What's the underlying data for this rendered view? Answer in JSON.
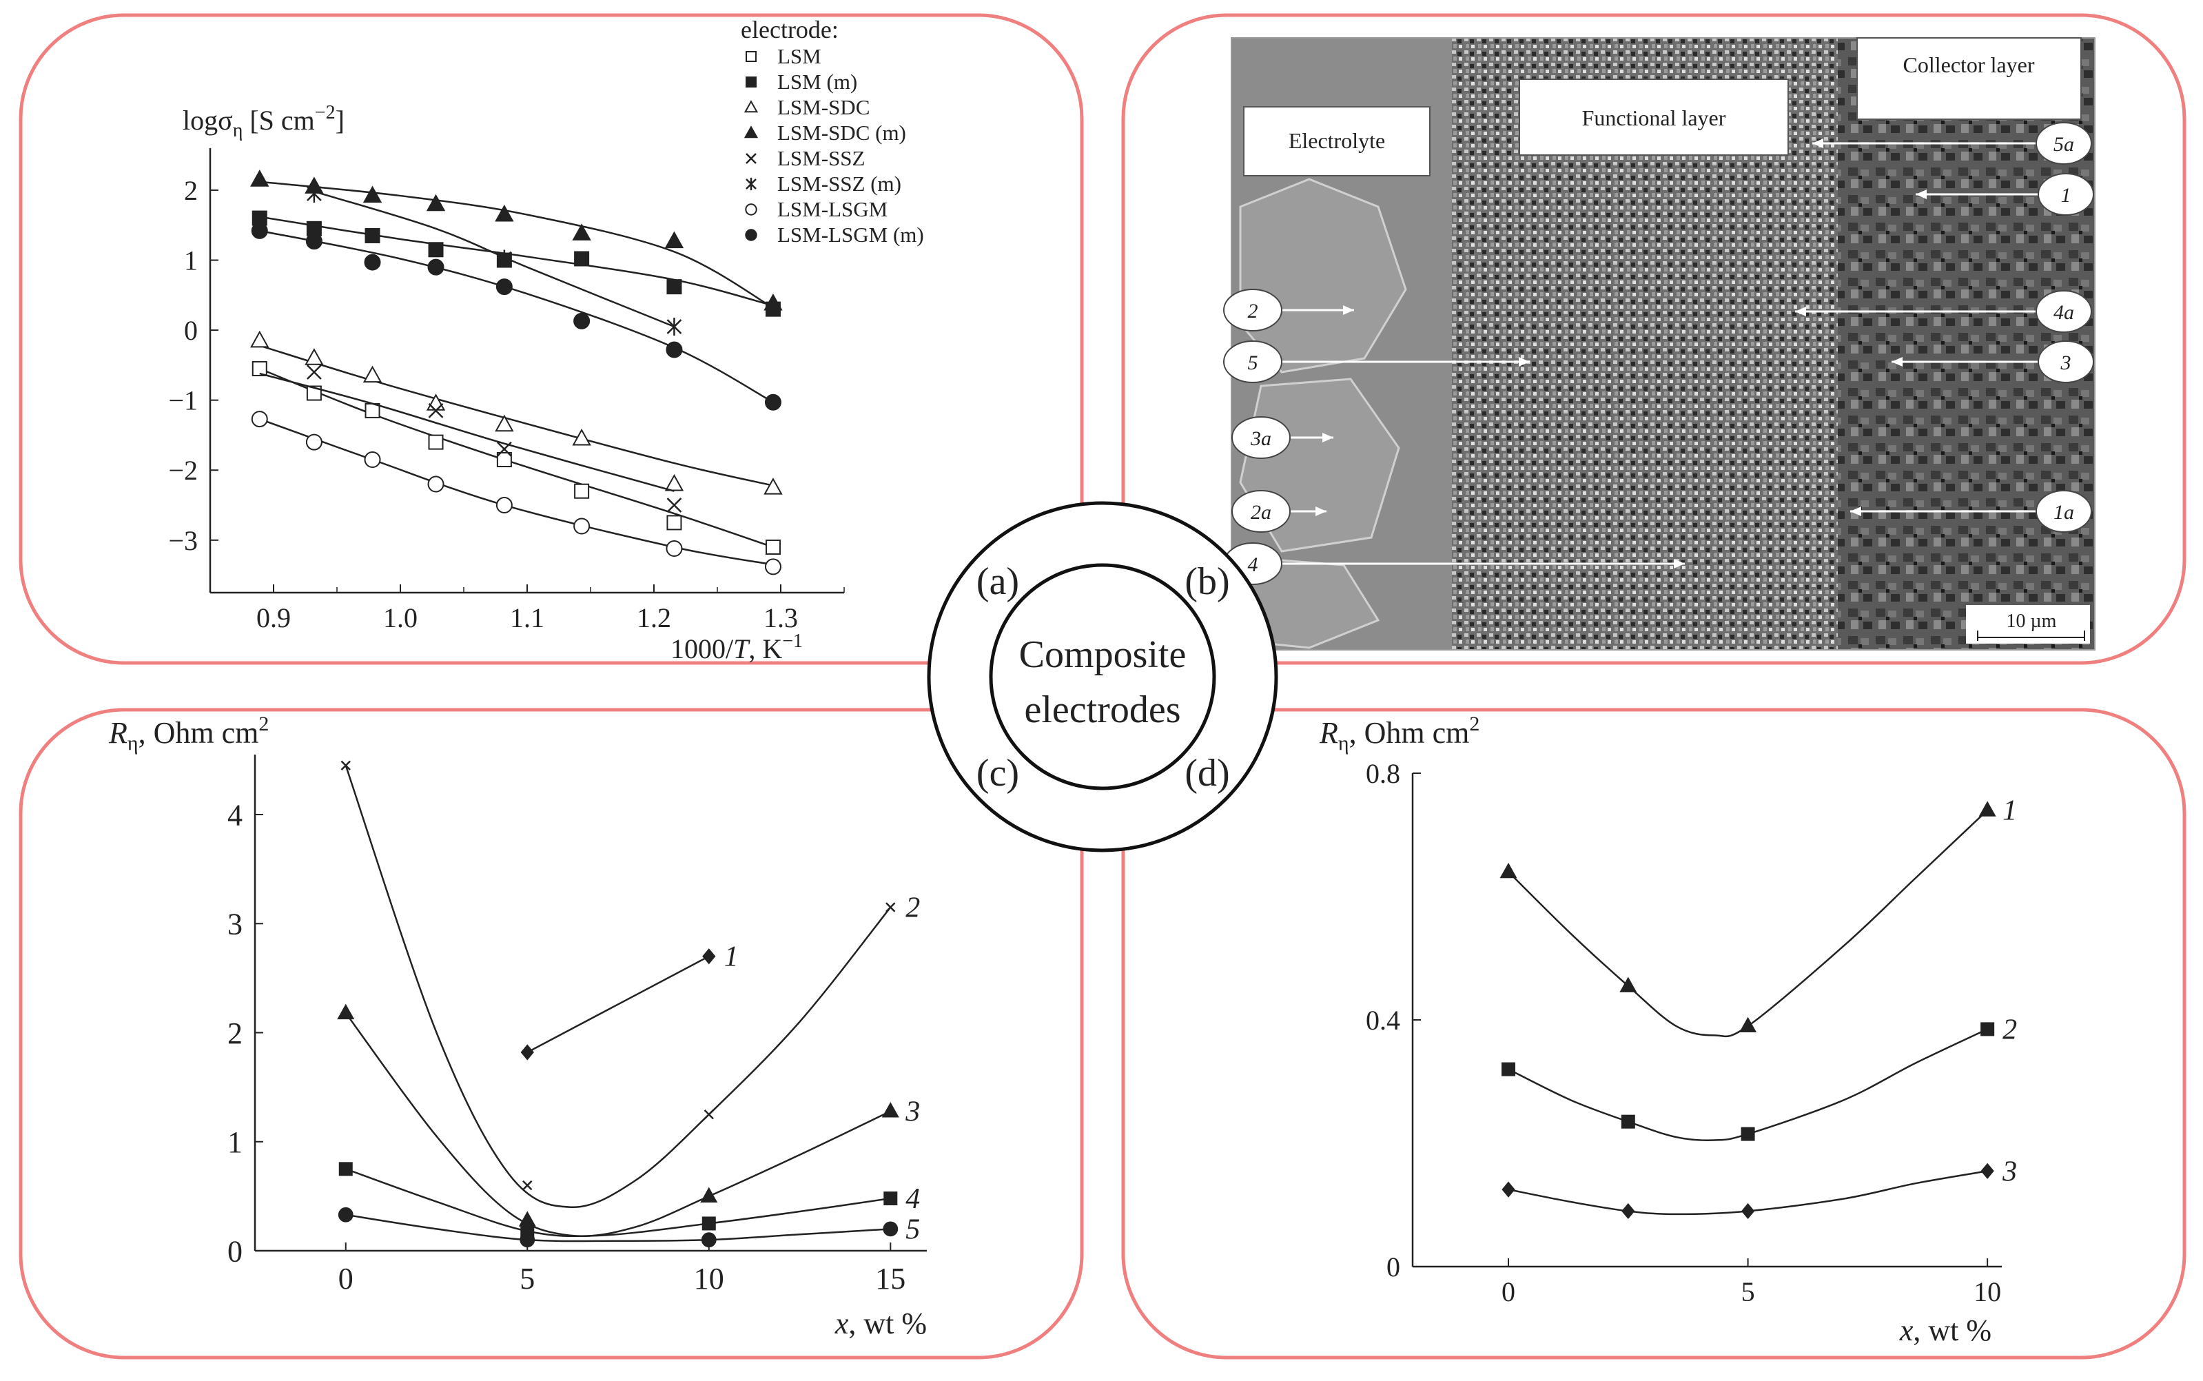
{
  "center": {
    "line1": "Composite",
    "line2": "electrodes",
    "labels": [
      "(a)",
      "(b)",
      "(c)",
      "(d)"
    ]
  },
  "colors": {
    "frame": "#f08080",
    "ink": "#222222"
  },
  "chart_data": [
    {
      "id": "a",
      "type": "scatter",
      "ylabel_main": "logσ",
      "ylabel_sub": "η",
      "ylabel_unit": "[S cm",
      "ylabel_sup": "−2",
      "ylabel_end": "]",
      "xlabel_pre": "1000/",
      "xlabel_var": "T",
      "xlabel_unit": ", K",
      "xlabel_sup": "−1",
      "legend_title": "electrode:",
      "legend_placement": "top-right",
      "xlim": [
        0.85,
        1.35
      ],
      "ylim": [
        -3.75,
        2.6
      ],
      "xticks": [
        0.9,
        1.0,
        1.1,
        1.2,
        1.3
      ],
      "xtick_labels": [
        "0.9",
        "1.0",
        "1.1",
        "1.2",
        "1.3"
      ],
      "yticks": [
        2,
        1,
        0,
        -1,
        -2,
        -3
      ],
      "ytick_labels": [
        "2",
        "1",
        "0",
        "−1",
        "−2",
        "−3"
      ],
      "series": [
        {
          "name": "LSM",
          "marker": "square-open",
          "x": [
            0.889,
            0.932,
            0.978,
            1.028,
            1.082,
            1.143,
            1.216,
            1.294
          ],
          "y": [
            -0.55,
            -0.9,
            -1.15,
            -1.6,
            -1.85,
            -2.3,
            -2.75,
            -3.1
          ],
          "fit": [
            [
              0.889,
              -0.55
            ],
            [
              0.978,
              -1.2
            ],
            [
              1.082,
              -1.85
            ],
            [
              1.216,
              -2.62
            ],
            [
              1.294,
              -3.1
            ]
          ]
        },
        {
          "name": "LSM (m)",
          "marker": "square-filled",
          "x": [
            0.889,
            0.932,
            0.978,
            1.028,
            1.082,
            1.143,
            1.216,
            1.294
          ],
          "y": [
            1.6,
            1.45,
            1.35,
            1.15,
            1.0,
            1.02,
            0.62,
            0.3
          ],
          "fit": [
            [
              0.889,
              1.62
            ],
            [
              1.0,
              1.3
            ],
            [
              1.1,
              1.05
            ],
            [
              1.216,
              0.72
            ],
            [
              1.294,
              0.35
            ]
          ]
        },
        {
          "name": "LSM-SDC",
          "marker": "triangle-open",
          "x": [
            0.889,
            0.932,
            0.978,
            1.028,
            1.082,
            1.143,
            1.216,
            1.294
          ],
          "y": [
            -0.15,
            -0.4,
            -0.65,
            -1.05,
            -1.35,
            -1.55,
            -2.2,
            -2.25
          ],
          "fit": [
            [
              0.889,
              -0.22
            ],
            [
              0.978,
              -0.72
            ],
            [
              1.082,
              -1.25
            ],
            [
              1.216,
              -1.9
            ],
            [
              1.294,
              -2.22
            ]
          ]
        },
        {
          "name": "LSM-SDC (m)",
          "marker": "triangle-filled",
          "x": [
            0.889,
            0.932,
            0.978,
            1.028,
            1.082,
            1.143,
            1.216,
            1.294
          ],
          "y": [
            2.15,
            2.05,
            1.92,
            1.8,
            1.65,
            1.38,
            1.27,
            0.38
          ],
          "fit": [
            [
              0.889,
              2.12
            ],
            [
              1.0,
              1.92
            ],
            [
              1.1,
              1.65
            ],
            [
              1.216,
              1.12
            ],
            [
              1.294,
              0.32
            ]
          ]
        },
        {
          "name": "LSM-SSZ",
          "marker": "cross",
          "x": [
            0.932,
            1.028,
            1.082,
            1.216
          ],
          "y": [
            -0.6,
            -1.15,
            -1.7,
            -2.5
          ],
          "fit": [
            [
              0.889,
              -0.62
            ],
            [
              0.978,
              -1.05
            ],
            [
              1.082,
              -1.62
            ],
            [
              1.216,
              -2.3
            ]
          ]
        },
        {
          "name": "LSM-SSZ (m)",
          "marker": "asterisk",
          "x": [
            0.932,
            1.082,
            1.216
          ],
          "y": [
            1.95,
            1.02,
            0.05
          ],
          "fit": [
            [
              0.932,
              1.98
            ],
            [
              1.028,
              1.45
            ],
            [
              1.1,
              0.9
            ],
            [
              1.216,
              0.05
            ]
          ]
        },
        {
          "name": "LSM-LSGM",
          "marker": "circle-open",
          "x": [
            0.889,
            0.932,
            0.978,
            1.028,
            1.082,
            1.143,
            1.216,
            1.294
          ],
          "y": [
            -1.27,
            -1.6,
            -1.85,
            -2.2,
            -2.5,
            -2.8,
            -3.12,
            -3.38
          ],
          "fit": [
            [
              0.889,
              -1.27
            ],
            [
              0.978,
              -1.85
            ],
            [
              1.082,
              -2.5
            ],
            [
              1.216,
              -3.1
            ],
            [
              1.294,
              -3.35
            ]
          ]
        },
        {
          "name": "LSM-LSGM (m)",
          "marker": "circle-filled",
          "x": [
            0.889,
            0.932,
            0.978,
            1.028,
            1.082,
            1.143,
            1.216,
            1.294
          ],
          "y": [
            1.42,
            1.27,
            0.97,
            0.9,
            0.62,
            0.13,
            -0.28,
            -1.03
          ],
          "fit": [
            [
              0.889,
              1.42
            ],
            [
              1.0,
              1.02
            ],
            [
              1.1,
              0.52
            ],
            [
              1.216,
              -0.25
            ],
            [
              1.294,
              -1.03
            ]
          ]
        }
      ]
    },
    {
      "id": "c",
      "type": "line",
      "ylabel_var": "R",
      "ylabel_sub": "η",
      "ylabel_unit": ", Ohm cm",
      "ylabel_sup": "2",
      "xlabel_var": "x",
      "xlabel_unit": ", wt %",
      "xlim": [
        -2.5,
        16
      ],
      "ylim": [
        0,
        4.55
      ],
      "xticks": [
        0,
        5,
        10,
        15
      ],
      "xtick_labels": [
        "0",
        "5",
        "10",
        "15"
      ],
      "yticks": [
        0,
        1,
        2,
        3,
        4
      ],
      "ytick_labels": [
        "0",
        "1",
        "2",
        "3",
        "4"
      ],
      "series": [
        {
          "label": "1",
          "marker": "diamond",
          "x": [
            5,
            10
          ],
          "y": [
            1.82,
            2.7
          ],
          "curve": [
            [
              5,
              1.82
            ],
            [
              10,
              2.7
            ]
          ]
        },
        {
          "label": "2",
          "marker": "small-cross",
          "x": [
            0,
            5,
            10,
            15
          ],
          "y": [
            4.45,
            0.6,
            1.25,
            3.15
          ],
          "curve": [
            [
              0,
              4.45
            ],
            [
              2.5,
              2.0
            ],
            [
              4.5,
              0.7
            ],
            [
              6.2,
              0.4
            ],
            [
              8,
              0.65
            ],
            [
              10,
              1.25
            ],
            [
              12.5,
              2.1
            ],
            [
              15,
              3.15
            ]
          ]
        },
        {
          "label": "3",
          "marker": "triangle",
          "x": [
            0,
            5,
            10,
            15
          ],
          "y": [
            2.18,
            0.28,
            0.5,
            1.28
          ],
          "curve": [
            [
              0,
              2.18
            ],
            [
              2.5,
              1.05
            ],
            [
              4.5,
              0.35
            ],
            [
              6.2,
              0.14
            ],
            [
              8,
              0.22
            ],
            [
              10,
              0.5
            ],
            [
              12.5,
              0.88
            ],
            [
              15,
              1.28
            ]
          ]
        },
        {
          "label": "4",
          "marker": "square",
          "x": [
            0,
            5,
            10,
            15
          ],
          "y": [
            0.75,
            0.18,
            0.25,
            0.48
          ],
          "curve": [
            [
              0,
              0.75
            ],
            [
              2.5,
              0.45
            ],
            [
              5,
              0.18
            ],
            [
              7,
              0.14
            ],
            [
              10,
              0.25
            ],
            [
              12.5,
              0.36
            ],
            [
              15,
              0.48
            ]
          ]
        },
        {
          "label": "5",
          "marker": "circle",
          "x": [
            0,
            5,
            10,
            15
          ],
          "y": [
            0.33,
            0.1,
            0.1,
            0.2
          ],
          "curve": [
            [
              0,
              0.33
            ],
            [
              2.5,
              0.2
            ],
            [
              5,
              0.1
            ],
            [
              7.5,
              0.09
            ],
            [
              10,
              0.1
            ],
            [
              12.5,
              0.15
            ],
            [
              15,
              0.2
            ]
          ]
        }
      ]
    },
    {
      "id": "d",
      "type": "line",
      "ylabel_var": "R",
      "ylabel_sub": "η",
      "ylabel_unit": ", Ohm cm",
      "ylabel_sup": "2",
      "xlabel_var": "x",
      "xlabel_unit": ", wt %",
      "xlim": [
        -2,
        10.3
      ],
      "ylim": [
        0,
        0.8
      ],
      "xticks": [
        0,
        5,
        10
      ],
      "xtick_labels": [
        "0",
        "5",
        "10"
      ],
      "yticks": [
        0,
        0.4,
        0.8
      ],
      "ytick_labels": [
        "0",
        "0.4",
        "0.8"
      ],
      "series": [
        {
          "label": "1",
          "marker": "triangle",
          "x": [
            0,
            2.5,
            5,
            10
          ],
          "y": [
            0.64,
            0.455,
            0.39,
            0.74
          ],
          "curve": [
            [
              0,
              0.64
            ],
            [
              1.3,
              0.54
            ],
            [
              2.5,
              0.455
            ],
            [
              3.5,
              0.39
            ],
            [
              4.3,
              0.375
            ],
            [
              5,
              0.39
            ],
            [
              7,
              0.52
            ],
            [
              8.5,
              0.63
            ],
            [
              10,
              0.74
            ]
          ]
        },
        {
          "label": "2",
          "marker": "square",
          "x": [
            0,
            2.5,
            5,
            10
          ],
          "y": [
            0.32,
            0.235,
            0.215,
            0.385
          ],
          "curve": [
            [
              0,
              0.32
            ],
            [
              1.3,
              0.27
            ],
            [
              2.5,
              0.235
            ],
            [
              3.5,
              0.21
            ],
            [
              4.3,
              0.205
            ],
            [
              5,
              0.215
            ],
            [
              7,
              0.27
            ],
            [
              8.5,
              0.33
            ],
            [
              10,
              0.385
            ]
          ]
        },
        {
          "label": "3",
          "marker": "diamond",
          "x": [
            0,
            2.5,
            5,
            10
          ],
          "y": [
            0.125,
            0.09,
            0.09,
            0.155
          ],
          "curve": [
            [
              0,
              0.125
            ],
            [
              1.3,
              0.105
            ],
            [
              2.5,
              0.09
            ],
            [
              3.5,
              0.085
            ],
            [
              5,
              0.09
            ],
            [
              7,
              0.11
            ],
            [
              8.5,
              0.135
            ],
            [
              10,
              0.155
            ]
          ]
        }
      ]
    }
  ],
  "micrograph": {
    "labels": {
      "electrolyte": "Electrolyte",
      "functional": "Functional layer",
      "collector": "Collector layer",
      "scale": "10 µm"
    },
    "callouts_left": [
      "2",
      "5",
      "3a",
      "2a",
      "4"
    ],
    "callouts_right": [
      "5a",
      "1",
      "4a",
      "3",
      "1a"
    ]
  }
}
